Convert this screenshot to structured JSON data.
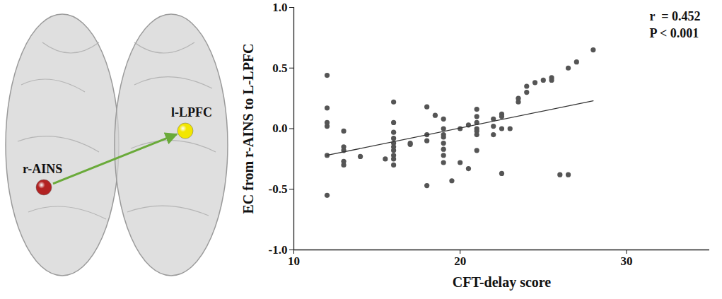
{
  "chart_data": {
    "type": "scatter",
    "xlabel": "CFT-delay score",
    "ylabel": "EC from r-AINS to L-LPFC",
    "xlim": [
      10,
      35
    ],
    "xticks": [
      10,
      20,
      30
    ],
    "ylim": [
      -1,
      1
    ],
    "yticks": [
      {
        "value": -1,
        "label": "-1.0"
      },
      {
        "value": -0.5,
        "label": "-0.5"
      },
      {
        "value": 0,
        "label": "0.0"
      },
      {
        "value": 0.5,
        "label": "0.5"
      },
      {
        "value": 1,
        "label": "1.0"
      }
    ],
    "annotations": [
      "r  = 0.452",
      "P < 0.001"
    ],
    "grid": false,
    "series": [
      {
        "type": "scatter",
        "marker": "circle",
        "color": "#555555",
        "x": [
          12,
          12,
          12,
          12,
          12,
          12,
          13,
          13,
          13,
          13,
          13,
          14,
          15.5,
          16,
          16,
          16,
          16,
          16,
          16,
          16,
          16,
          16,
          16,
          17,
          17,
          18,
          18,
          18,
          18,
          18.5,
          19,
          19,
          19,
          19,
          19,
          19,
          19,
          19,
          19.5,
          20,
          20,
          20.5,
          20.5,
          21,
          21,
          21,
          21,
          21,
          21,
          21,
          22,
          22,
          22,
          22.5,
          22.5,
          22.5,
          22.5,
          23,
          23.5,
          23.5,
          24,
          24,
          24.5,
          25,
          25.5,
          25.5,
          26,
          26.5,
          26.5,
          27,
          28
        ],
        "values": [
          0.44,
          0.17,
          0.05,
          0.02,
          -0.22,
          -0.55,
          -0.02,
          -0.15,
          -0.18,
          -0.27,
          -0.3,
          -0.23,
          -0.25,
          0.22,
          0.05,
          -0.03,
          -0.08,
          -0.12,
          -0.15,
          -0.18,
          -0.22,
          -0.25,
          -0.3,
          -0.12,
          -0.13,
          0.18,
          -0.05,
          -0.1,
          -0.47,
          0.11,
          0.08,
          0.0,
          -0.05,
          -0.07,
          -0.12,
          -0.17,
          -0.22,
          -0.28,
          -0.43,
          0.0,
          -0.28,
          0.03,
          -0.33,
          0.16,
          0.1,
          0.05,
          0.0,
          -0.02,
          -0.05,
          -0.18,
          0.02,
          -0.05,
          0.08,
          0.12,
          0.1,
          0.0,
          -0.37,
          0.0,
          0.22,
          0.25,
          0.35,
          0.3,
          0.38,
          0.4,
          0.42,
          0.4,
          -0.38,
          -0.38,
          0.5,
          0.55,
          0.65
        ]
      },
      {
        "type": "line",
        "line_style": "solid",
        "color": "#333333",
        "x": [
          12,
          28
        ],
        "values": [
          -0.22,
          0.23
        ]
      }
    ]
  },
  "diagram": {
    "nodes": [
      {
        "label": "r-AINS",
        "color": "#b22222"
      },
      {
        "label": "l-LPFC",
        "color": "#f2e600"
      }
    ],
    "edges": [
      {
        "from": 0,
        "to": 1,
        "color": "#6aaa3a"
      }
    ]
  }
}
